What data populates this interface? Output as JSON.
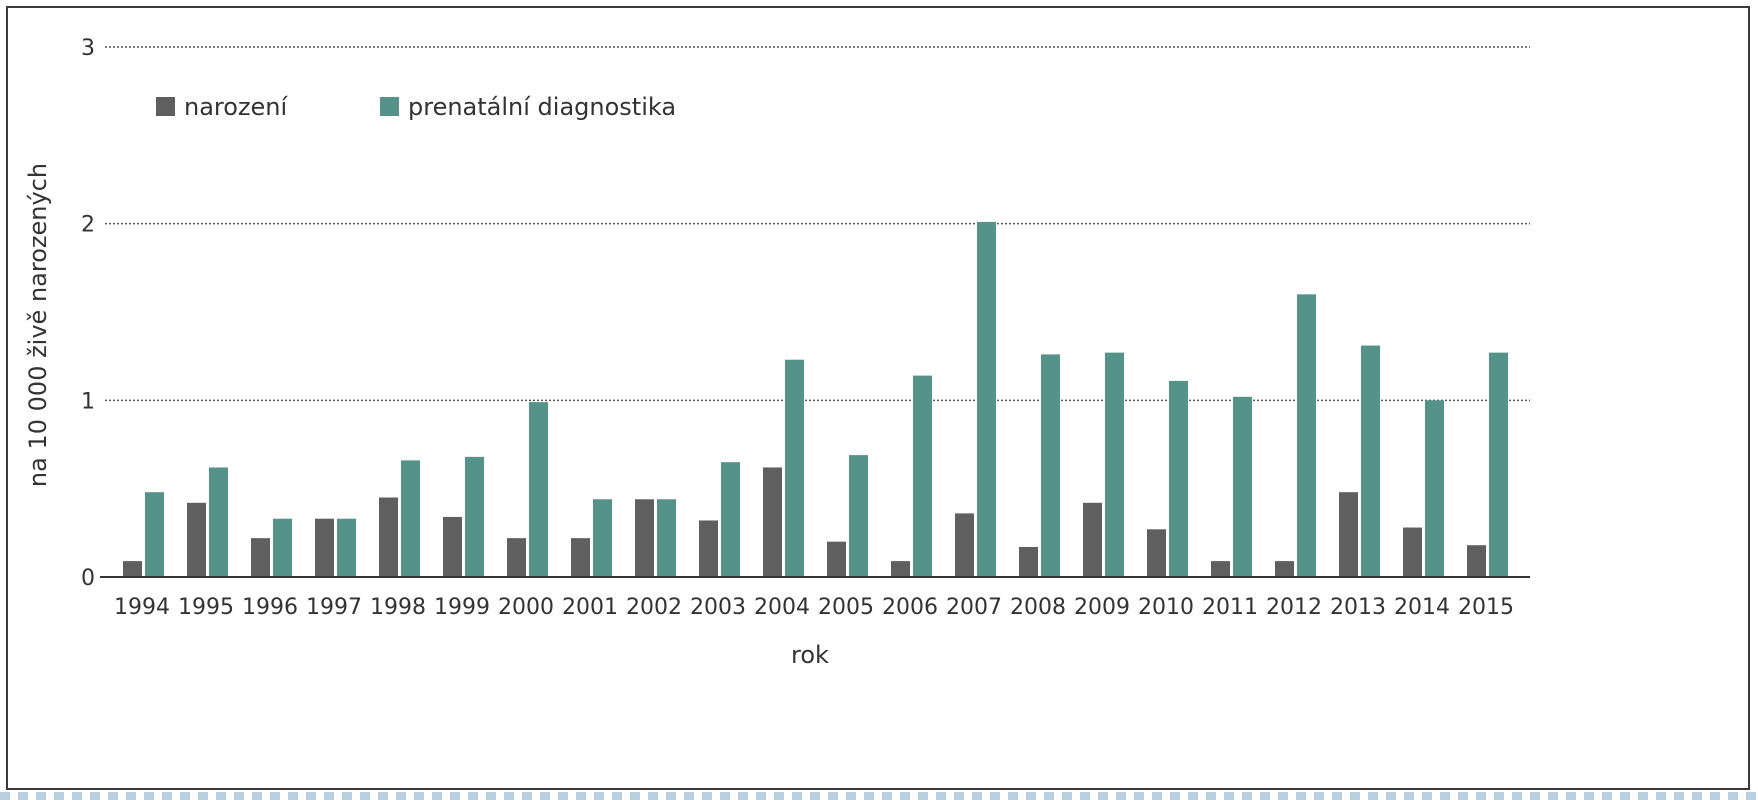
{
  "chart_data": {
    "type": "bar",
    "title": "",
    "xlabel": "rok",
    "ylabel": "na 10 000 živě narozených",
    "ylim": [
      0,
      3
    ],
    "yticks": [
      "0",
      "1",
      "2",
      "3"
    ],
    "grid": true,
    "legend_position": "top-left",
    "categories": [
      "1994",
      "1995",
      "1996",
      "1997",
      "1998",
      "1999",
      "2000",
      "2001",
      "2002",
      "2003",
      "2004",
      "2005",
      "2006",
      "2007",
      "2008",
      "2009",
      "2010",
      "2011",
      "2012",
      "2013",
      "2014",
      "2015"
    ],
    "series": [
      {
        "name": "narození",
        "color": "#5f5f5f",
        "values": [
          0.09,
          0.42,
          0.22,
          0.33,
          0.45,
          0.34,
          0.22,
          0.22,
          0.44,
          0.32,
          0.62,
          0.2,
          0.09,
          0.36,
          0.17,
          0.42,
          0.27,
          0.09,
          0.09,
          0.48,
          0.28,
          0.18
        ]
      },
      {
        "name": "prenatální diagnostika",
        "color": "#55938a",
        "values": [
          0.48,
          0.62,
          0.33,
          0.33,
          0.66,
          0.68,
          0.99,
          0.44,
          0.44,
          0.65,
          1.23,
          0.69,
          1.14,
          2.01,
          1.26,
          1.27,
          1.11,
          1.02,
          1.6,
          1.31,
          1.0,
          1.27
        ]
      }
    ]
  }
}
